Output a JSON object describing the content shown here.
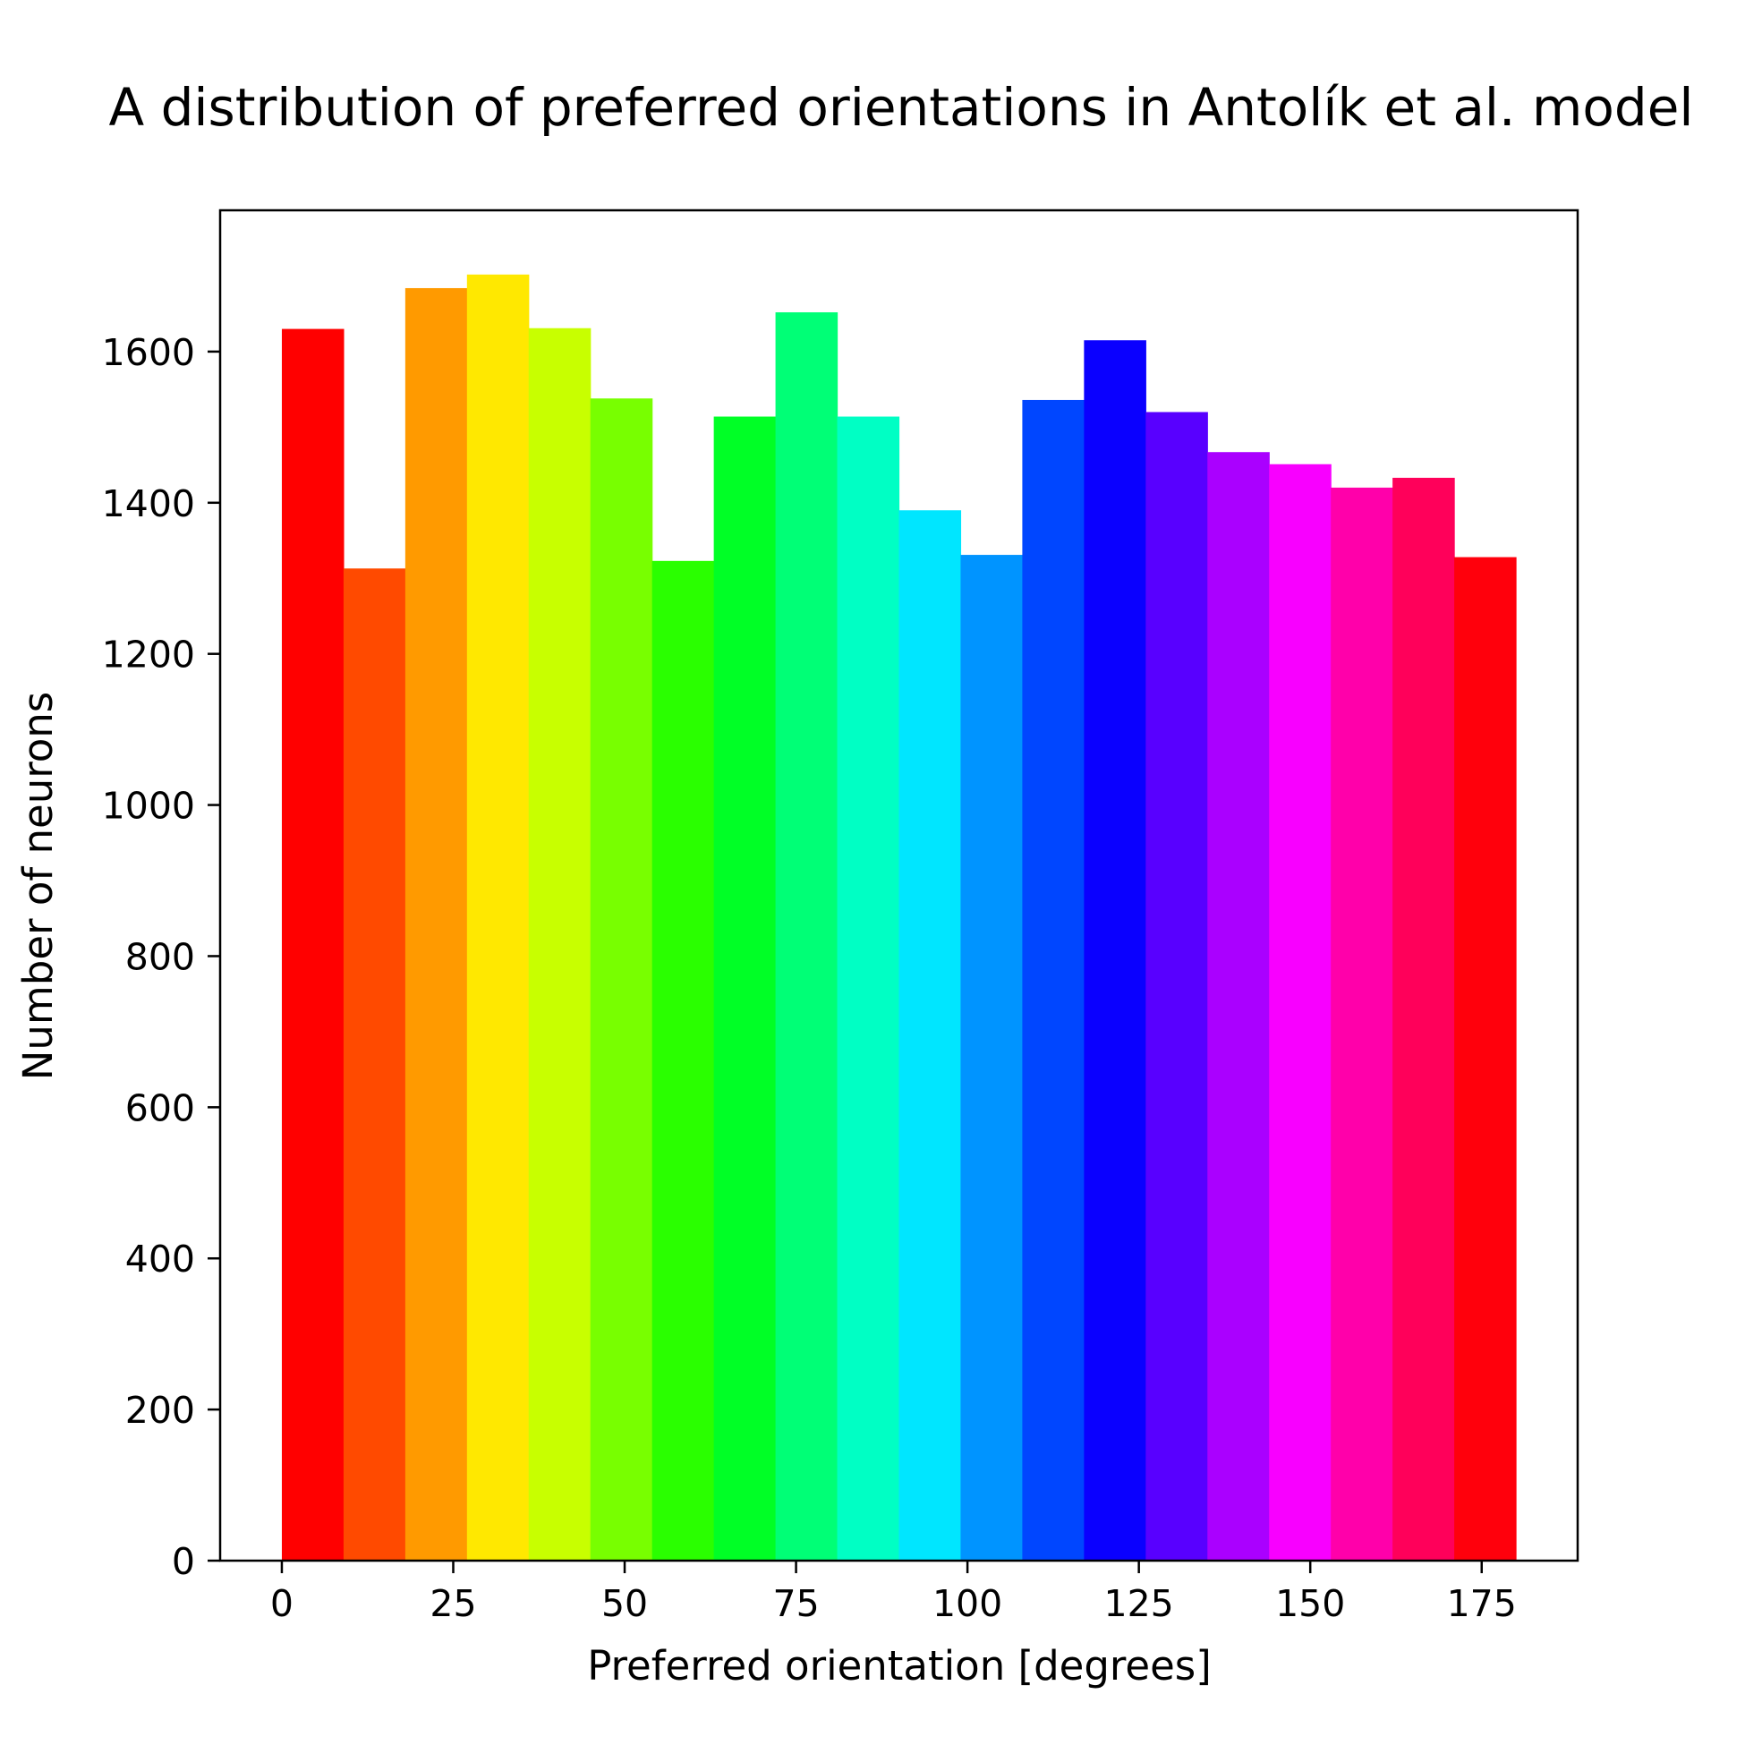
{
  "chart_data": {
    "type": "bar",
    "title": "A distribution of preferred orientations in Antolík et al. model",
    "xlabel": "Preferred orientation [degrees]",
    "ylabel": "Number of neurons",
    "bin_width": 9,
    "bins": [
      0,
      9,
      18,
      27,
      36,
      45,
      54,
      63,
      72,
      81,
      90,
      99,
      108,
      117,
      126,
      135,
      144,
      153,
      162,
      171
    ],
    "values": [
      1630,
      1313,
      1684,
      1702,
      1631,
      1538,
      1323,
      1514,
      1652,
      1514,
      1390,
      1331,
      1536,
      1615,
      1520,
      1467,
      1451,
      1420,
      1433,
      1328
    ],
    "colors": [
      "#ff0000",
      "#ff4a00",
      "#ff9a00",
      "#ffe800",
      "#c8ff00",
      "#78ff00",
      "#2aff00",
      "#00ff26",
      "#00ff76",
      "#00ffc4",
      "#00e6ff",
      "#0094ff",
      "#0046ff",
      "#0a00ff",
      "#5800ff",
      "#aa00ff",
      "#f800ff",
      "#ff00aa",
      "#ff005a",
      "#ff000c"
    ],
    "xlim": [
      -9,
      189
    ],
    "ylim": [
      0,
      1787
    ],
    "xticks": [
      0,
      25,
      50,
      75,
      100,
      125,
      150,
      175
    ],
    "yticks": [
      0,
      200,
      400,
      600,
      800,
      1000,
      1200,
      1400,
      1600
    ],
    "grid": false
  }
}
